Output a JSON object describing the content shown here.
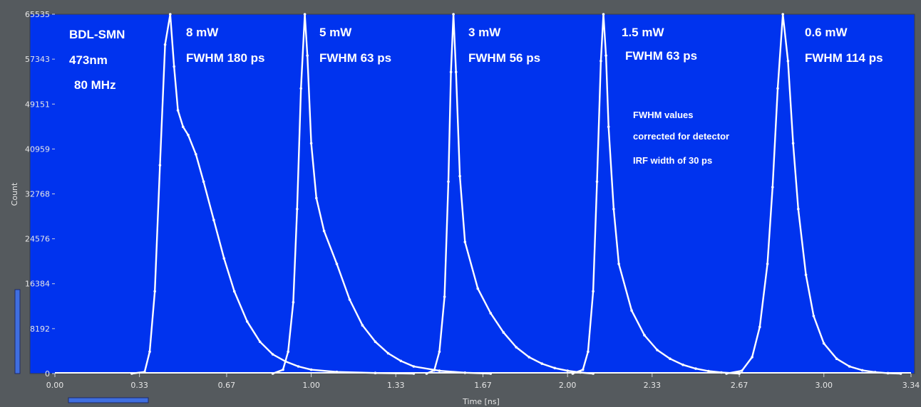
{
  "colors": {
    "background": "#555a5e",
    "plot_bg": "#0033ee",
    "trace": "#ffffff",
    "accent_bar": "#3f6ee0"
  },
  "chart_data": {
    "type": "line",
    "xlabel": "Time [ns]",
    "ylabel": "Count",
    "xlim": [
      0,
      3.34
    ],
    "ylim": [
      0,
      65535
    ],
    "x_ticks": [
      "0.00",
      "0.33",
      "0.67",
      "1.00",
      "1.33",
      "1.67",
      "2.00",
      "2.33",
      "2.67",
      "3.00",
      "3.34"
    ],
    "x_tick_values": [
      0,
      0.33,
      0.67,
      1.0,
      1.33,
      1.67,
      2.0,
      2.33,
      2.67,
      3.0,
      3.34
    ],
    "y_ticks": [
      "0",
      "8192",
      "16384",
      "24576",
      "32768",
      "40959",
      "49151",
      "57343",
      "65535"
    ],
    "y_tick_values": [
      0,
      8192,
      16384,
      24576,
      32768,
      40959,
      49151,
      57343,
      65535
    ],
    "grid": false,
    "series": [
      {
        "name": "8 mW",
        "fwhm": "FWHM 180 ps",
        "peak_time": 0.45,
        "points": [
          [
            0.3,
            0
          ],
          [
            0.35,
            300
          ],
          [
            0.37,
            4000
          ],
          [
            0.39,
            15000
          ],
          [
            0.41,
            38000
          ],
          [
            0.43,
            60000
          ],
          [
            0.45,
            65535
          ],
          [
            0.465,
            56000
          ],
          [
            0.48,
            48000
          ],
          [
            0.5,
            45000
          ],
          [
            0.52,
            43500
          ],
          [
            0.55,
            40000
          ],
          [
            0.58,
            35000
          ],
          [
            0.62,
            28000
          ],
          [
            0.66,
            21000
          ],
          [
            0.7,
            15000
          ],
          [
            0.75,
            9500
          ],
          [
            0.8,
            5800
          ],
          [
            0.85,
            3500
          ],
          [
            0.9,
            2200
          ],
          [
            0.95,
            1300
          ],
          [
            1.0,
            700
          ],
          [
            1.1,
            300
          ],
          [
            1.25,
            100
          ],
          [
            1.4,
            0
          ]
        ]
      },
      {
        "name": "5 mW",
        "fwhm": "FWHM 63 ps",
        "peak_time": 0.975,
        "points": [
          [
            0.85,
            0
          ],
          [
            0.89,
            700
          ],
          [
            0.91,
            4000
          ],
          [
            0.93,
            13000
          ],
          [
            0.945,
            30000
          ],
          [
            0.96,
            52000
          ],
          [
            0.975,
            65535
          ],
          [
            0.985,
            58000
          ],
          [
            1.0,
            42000
          ],
          [
            1.02,
            32000
          ],
          [
            1.05,
            26000
          ],
          [
            1.1,
            20000
          ],
          [
            1.15,
            13500
          ],
          [
            1.2,
            8800
          ],
          [
            1.25,
            5800
          ],
          [
            1.3,
            3700
          ],
          [
            1.35,
            2300
          ],
          [
            1.4,
            1300
          ],
          [
            1.5,
            500
          ],
          [
            1.6,
            150
          ],
          [
            1.7,
            0
          ]
        ]
      },
      {
        "name": "3 mW",
        "fwhm": "FWHM 56 ps",
        "peak_time": 1.555,
        "points": [
          [
            1.45,
            0
          ],
          [
            1.48,
            600
          ],
          [
            1.5,
            4000
          ],
          [
            1.52,
            14000
          ],
          [
            1.535,
            35000
          ],
          [
            1.545,
            55000
          ],
          [
            1.555,
            65535
          ],
          [
            1.565,
            55000
          ],
          [
            1.58,
            36000
          ],
          [
            1.6,
            24000
          ],
          [
            1.65,
            15500
          ],
          [
            1.7,
            11000
          ],
          [
            1.75,
            7500
          ],
          [
            1.8,
            4800
          ],
          [
            1.85,
            3000
          ],
          [
            1.9,
            1800
          ],
          [
            1.95,
            1000
          ],
          [
            2.0,
            500
          ],
          [
            2.05,
            200
          ],
          [
            2.1,
            0
          ]
        ]
      },
      {
        "name": "1.5 mW",
        "fwhm": "FWHM 63 ps",
        "peak_time": 2.14,
        "points": [
          [
            2.02,
            0
          ],
          [
            2.06,
            700
          ],
          [
            2.08,
            4000
          ],
          [
            2.1,
            15000
          ],
          [
            2.115,
            35000
          ],
          [
            2.13,
            57000
          ],
          [
            2.14,
            65535
          ],
          [
            2.15,
            58000
          ],
          [
            2.16,
            45000
          ],
          [
            2.18,
            30000
          ],
          [
            2.2,
            20000
          ],
          [
            2.25,
            11500
          ],
          [
            2.3,
            7000
          ],
          [
            2.35,
            4300
          ],
          [
            2.4,
            2700
          ],
          [
            2.45,
            1600
          ],
          [
            2.5,
            900
          ],
          [
            2.55,
            450
          ],
          [
            2.6,
            200
          ],
          [
            2.67,
            0
          ]
        ]
      },
      {
        "name": "0.6 mW",
        "fwhm": "FWHM 114 ps",
        "peak_time": 2.84,
        "points": [
          [
            2.62,
            0
          ],
          [
            2.68,
            500
          ],
          [
            2.72,
            3000
          ],
          [
            2.75,
            8500
          ],
          [
            2.78,
            20000
          ],
          [
            2.8,
            34000
          ],
          [
            2.82,
            52000
          ],
          [
            2.84,
            65535
          ],
          [
            2.86,
            57000
          ],
          [
            2.88,
            42000
          ],
          [
            2.9,
            30000
          ],
          [
            2.93,
            18000
          ],
          [
            2.96,
            10500
          ],
          [
            3.0,
            5500
          ],
          [
            3.05,
            2700
          ],
          [
            3.1,
            1300
          ],
          [
            3.15,
            600
          ],
          [
            3.2,
            250
          ],
          [
            3.25,
            80
          ],
          [
            3.3,
            0
          ]
        ]
      }
    ],
    "annotations": {
      "setup": [
        "BDL-SMN",
        "473nm",
        "80 MHz"
      ],
      "note": [
        "FWHM values",
        "corrected for detector",
        "IRF width of 30 ps"
      ]
    }
  }
}
